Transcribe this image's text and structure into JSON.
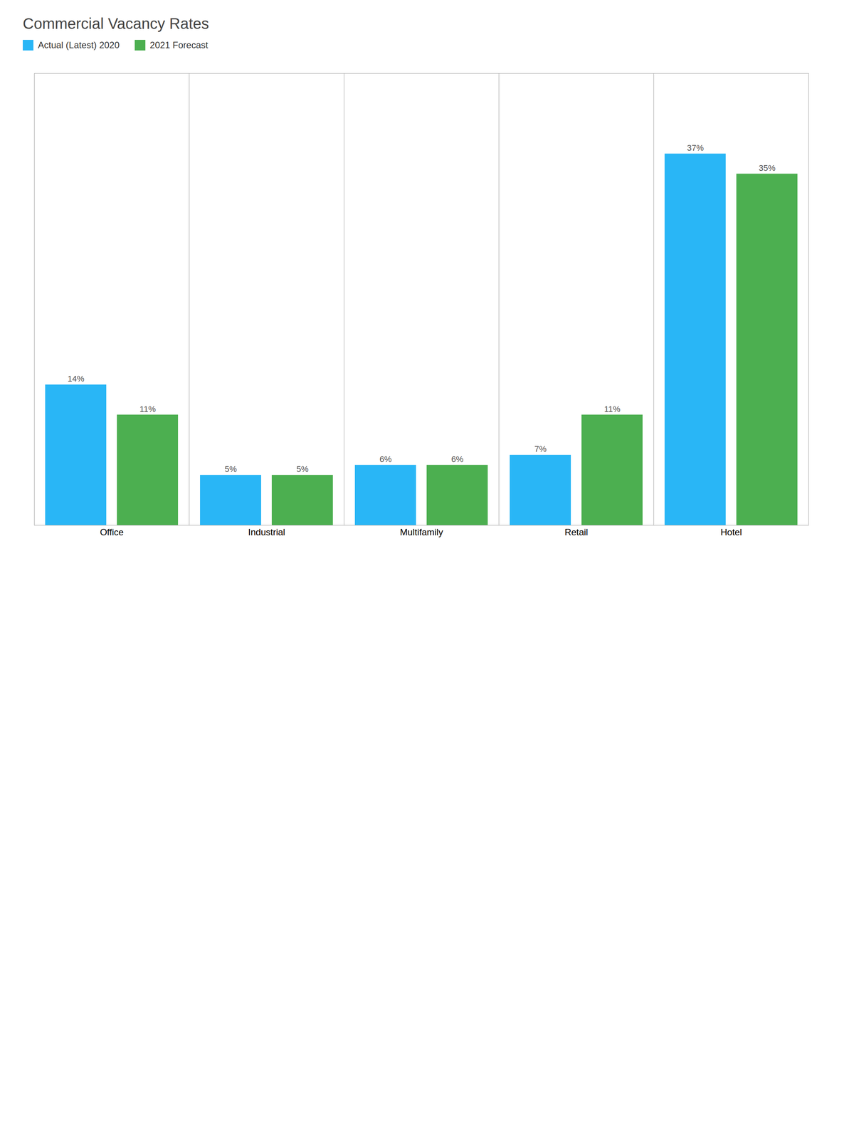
{
  "chart_data": {
    "type": "bar",
    "title": "Commercial Vacancy Rates",
    "categories": [
      "Office",
      "Industrial",
      "Multifamily",
      "Retail",
      "Hotel"
    ],
    "series": [
      {
        "name": "Actual (Latest) 2020",
        "color": "#29B6F6",
        "values": [
          14,
          5,
          6,
          7,
          37
        ],
        "value_labels": [
          "14%",
          "5%",
          "6%",
          "7%",
          "37%"
        ]
      },
      {
        "name": "2021 Forecast",
        "color": "#4CAF50",
        "values": [
          11,
          5,
          6,
          11,
          35
        ],
        "value_labels": [
          "11%",
          "5%",
          "6%",
          "11%",
          "35%"
        ]
      }
    ],
    "ylim": [
      0,
      45
    ],
    "yticks": [],
    "grid": false,
    "legend": "upper left",
    "data_labels": true,
    "tick_labels": "x"
  }
}
